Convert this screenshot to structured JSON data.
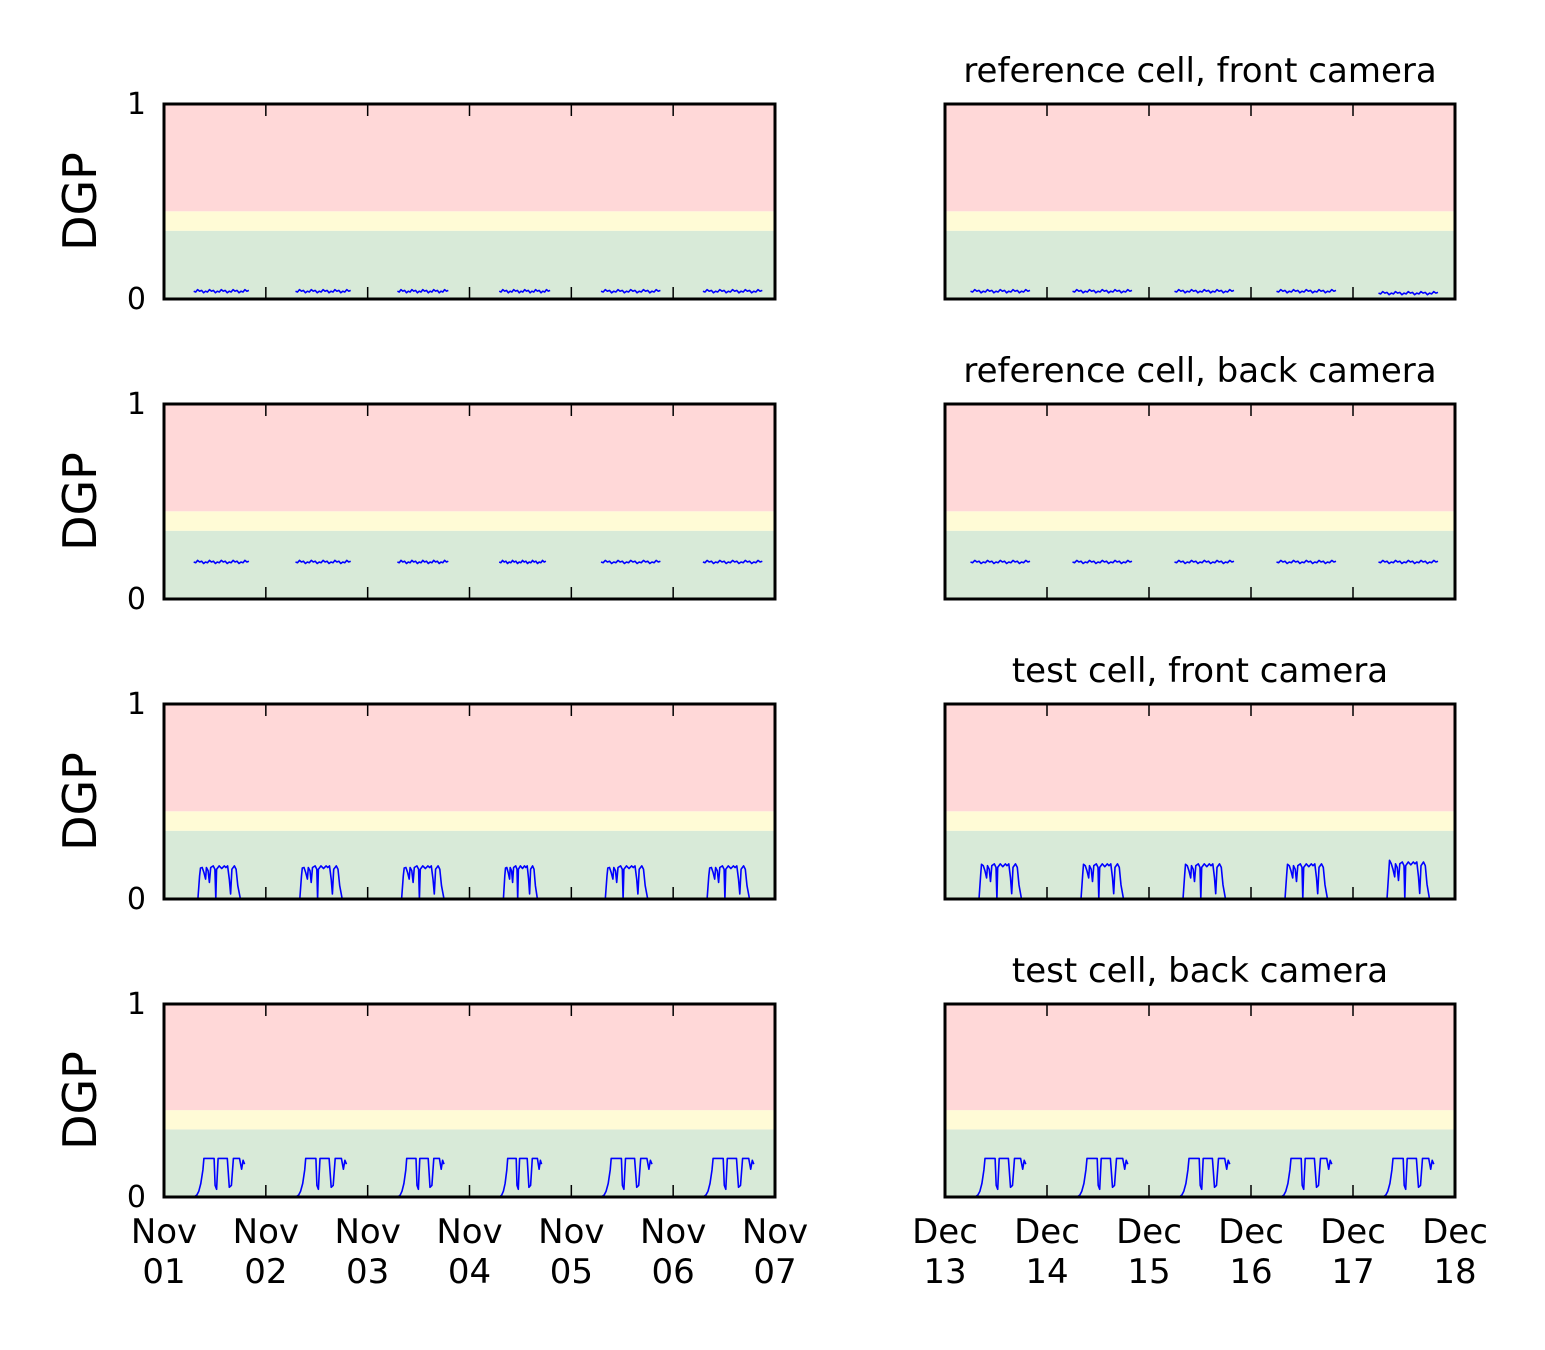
{
  "colors": {
    "discomfort": "#ffd8d8",
    "perceptible": "#fffbd6",
    "imperceptible": "#d8ead8",
    "line": "#0000ff",
    "axis": "#000000"
  },
  "chart_data": [
    {
      "type": "line",
      "panel": "left",
      "row": 1,
      "title": "",
      "ylabel": "DGP",
      "ylim": [
        0,
        1
      ],
      "yticks": [
        "0",
        "1"
      ],
      "xlim": [
        "2012-11-01",
        "2012-11-07"
      ],
      "xticklabels": [
        "Nov\n01",
        "Nov\n02",
        "Nov\n03",
        "Nov\n04",
        "Nov\n05",
        "Nov\n06",
        "Nov\n07"
      ],
      "zones": [
        {
          "from": 0,
          "to": 0.35,
          "color": "#d8ead8"
        },
        {
          "from": 0.35,
          "to": 0.45,
          "color": "#fffbd6"
        },
        {
          "from": 0.45,
          "to": 1,
          "color": "#ffd8d8"
        }
      ],
      "series": [
        {
          "pattern": "flat",
          "segments": [
            [
              "2012-11-01 07:00",
              "2012-11-01 20:00",
              0.04
            ],
            [
              "2012-11-02 07:00",
              "2012-11-02 20:00",
              0.04
            ],
            [
              "2012-11-03 07:00",
              "2012-11-03 19:00",
              0.04
            ],
            [
              "2012-11-04 07:00",
              "2012-11-04 19:00",
              0.04
            ],
            [
              "2012-11-05 07:00",
              "2012-11-05 21:00",
              0.04
            ],
            [
              "2012-11-06 07:00",
              "2012-11-06 21:00",
              0.04
            ]
          ]
        }
      ]
    },
    {
      "type": "line",
      "panel": "right",
      "row": 1,
      "title": "reference cell, front camera",
      "ylabel": "",
      "ylim": [
        0,
        1
      ],
      "yticks": [],
      "xlim": [
        "2012-12-13",
        "2012-12-18"
      ],
      "xticklabels": [
        "Dec\n13",
        "Dec\n14",
        "Dec\n15",
        "Dec\n16",
        "Dec\n17",
        "Dec\n18"
      ],
      "zones": [
        {
          "from": 0,
          "to": 0.35,
          "color": "#d8ead8"
        },
        {
          "from": 0.35,
          "to": 0.45,
          "color": "#fffbd6"
        },
        {
          "from": 0.45,
          "to": 1,
          "color": "#ffd8d8"
        }
      ],
      "series": [
        {
          "pattern": "flat",
          "segments": [
            [
              "2012-12-13 06:00",
              "2012-12-13 20:00",
              0.04
            ],
            [
              "2012-12-14 06:00",
              "2012-12-14 20:00",
              0.04
            ],
            [
              "2012-12-15 06:00",
              "2012-12-15 20:00",
              0.04
            ],
            [
              "2012-12-16 06:00",
              "2012-12-16 20:00",
              0.04
            ],
            [
              "2012-12-17 06:00",
              "2012-12-17 20:00",
              0.03
            ]
          ]
        }
      ]
    },
    {
      "type": "line",
      "panel": "left",
      "row": 2,
      "title": "",
      "ylabel": "DGP",
      "ylim": [
        0,
        1
      ],
      "yticks": [
        "0",
        "1"
      ],
      "xlim": [
        "2012-11-01",
        "2012-11-07"
      ],
      "xticklabels": [
        "Nov\n01",
        "Nov\n02",
        "Nov\n03",
        "Nov\n04",
        "Nov\n05",
        "Nov\n06",
        "Nov\n07"
      ],
      "zones": [
        {
          "from": 0,
          "to": 0.35,
          "color": "#d8ead8"
        },
        {
          "from": 0.35,
          "to": 0.45,
          "color": "#fffbd6"
        },
        {
          "from": 0.45,
          "to": 1,
          "color": "#ffd8d8"
        }
      ],
      "series": [
        {
          "pattern": "flat",
          "segments": [
            [
              "2012-11-01 07:00",
              "2012-11-01 20:00",
              0.19
            ],
            [
              "2012-11-02 07:00",
              "2012-11-02 20:00",
              0.19
            ],
            [
              "2012-11-03 07:00",
              "2012-11-03 19:00",
              0.19
            ],
            [
              "2012-11-04 07:00",
              "2012-11-04 18:00",
              0.19
            ],
            [
              "2012-11-05 07:00",
              "2012-11-05 21:00",
              0.19
            ],
            [
              "2012-11-06 07:00",
              "2012-11-06 21:00",
              0.19
            ]
          ]
        }
      ]
    },
    {
      "type": "line",
      "panel": "right",
      "row": 2,
      "title": "reference cell, back camera",
      "ylabel": "",
      "ylim": [
        0,
        1
      ],
      "yticks": [],
      "xlim": [
        "2012-12-13",
        "2012-12-18"
      ],
      "xticklabels": [
        "Dec\n13",
        "Dec\n14",
        "Dec\n15",
        "Dec\n16",
        "Dec\n17",
        "Dec\n18"
      ],
      "zones": [
        {
          "from": 0,
          "to": 0.35,
          "color": "#d8ead8"
        },
        {
          "from": 0.35,
          "to": 0.45,
          "color": "#fffbd6"
        },
        {
          "from": 0.45,
          "to": 1,
          "color": "#ffd8d8"
        }
      ],
      "series": [
        {
          "pattern": "flat",
          "segments": [
            [
              "2012-12-13 06:00",
              "2012-12-13 20:00",
              0.19
            ],
            [
              "2012-12-14 06:00",
              "2012-12-14 20:00",
              0.19
            ],
            [
              "2012-12-15 06:00",
              "2012-12-15 20:00",
              0.19
            ],
            [
              "2012-12-16 06:00",
              "2012-12-16 20:00",
              0.19
            ],
            [
              "2012-12-17 06:00",
              "2012-12-17 20:00",
              0.19
            ]
          ]
        }
      ]
    },
    {
      "type": "line",
      "panel": "left",
      "row": 3,
      "title": "",
      "ylabel": "DGP",
      "ylim": [
        0,
        1
      ],
      "yticks": [
        "0",
        "1"
      ],
      "xlim": [
        "2012-11-01",
        "2012-11-07"
      ],
      "xticklabels": [
        "Nov\n01",
        "Nov\n02",
        "Nov\n03",
        "Nov\n04",
        "Nov\n05",
        "Nov\n06",
        "Nov\n07"
      ],
      "zones": [
        {
          "from": 0,
          "to": 0.35,
          "color": "#d8ead8"
        },
        {
          "from": 0.35,
          "to": 0.45,
          "color": "#fffbd6"
        },
        {
          "from": 0.45,
          "to": 1,
          "color": "#ffd8d8"
        }
      ],
      "series": [
        {
          "pattern": "pulse",
          "segments": [
            [
              "2012-11-01 08:00",
              "2012-11-01 18:00",
              0.17
            ],
            [
              "2012-11-02 08:00",
              "2012-11-02 18:00",
              0.17
            ],
            [
              "2012-11-03 08:00",
              "2012-11-03 18:00",
              0.17
            ],
            [
              "2012-11-04 08:00",
              "2012-11-04 16:00",
              0.17
            ],
            [
              "2012-11-05 08:00",
              "2012-11-05 18:00",
              0.17
            ],
            [
              "2012-11-06 08:00",
              "2012-11-06 18:00",
              0.17
            ]
          ]
        }
      ]
    },
    {
      "type": "line",
      "panel": "right",
      "row": 3,
      "title": "test cell, front camera",
      "ylabel": "",
      "ylim": [
        0,
        1
      ],
      "yticks": [],
      "xlim": [
        "2012-12-13",
        "2012-12-18"
      ],
      "xticklabels": [
        "Dec\n13",
        "Dec\n14",
        "Dec\n15",
        "Dec\n16",
        "Dec\n17",
        "Dec\n18"
      ],
      "zones": [
        {
          "from": 0,
          "to": 0.35,
          "color": "#d8ead8"
        },
        {
          "from": 0.35,
          "to": 0.45,
          "color": "#fffbd6"
        },
        {
          "from": 0.45,
          "to": 1,
          "color": "#ffd8d8"
        }
      ],
      "series": [
        {
          "pattern": "pulse",
          "segments": [
            [
              "2012-12-13 08:00",
              "2012-12-13 18:00",
              0.18
            ],
            [
              "2012-12-14 08:00",
              "2012-12-14 18:00",
              0.18
            ],
            [
              "2012-12-15 08:00",
              "2012-12-15 18:00",
              0.18
            ],
            [
              "2012-12-16 08:00",
              "2012-12-16 18:00",
              0.18
            ],
            [
              "2012-12-17 08:00",
              "2012-12-17 18:00",
              0.19
            ]
          ]
        }
      ]
    },
    {
      "type": "line",
      "panel": "left",
      "row": 4,
      "title": "",
      "ylabel": "DGP",
      "ylim": [
        0,
        1
      ],
      "yticks": [
        "0",
        "1"
      ],
      "xlim": [
        "2012-11-01",
        "2012-11-07"
      ],
      "xticklabels": [
        "Nov\n01",
        "Nov\n02",
        "Nov\n03",
        "Nov\n04",
        "Nov\n05",
        "Nov\n06",
        "Nov\n07"
      ],
      "zones": [
        {
          "from": 0,
          "to": 0.35,
          "color": "#d8ead8"
        },
        {
          "from": 0.35,
          "to": 0.45,
          "color": "#fffbd6"
        },
        {
          "from": 0.45,
          "to": 1,
          "color": "#ffd8d8"
        }
      ],
      "series": [
        {
          "pattern": "square",
          "segments": [
            [
              "2012-11-01 07:00",
              "2012-11-01 19:00",
              0.2
            ],
            [
              "2012-11-02 07:00",
              "2012-11-02 19:00",
              0.2
            ],
            [
              "2012-11-03 07:00",
              "2012-11-03 18:00",
              0.2
            ],
            [
              "2012-11-04 07:00",
              "2012-11-04 17:00",
              0.2
            ],
            [
              "2012-11-05 07:00",
              "2012-11-05 19:00",
              0.2
            ],
            [
              "2012-11-06 07:00",
              "2012-11-06 19:00",
              0.2
            ]
          ]
        }
      ]
    },
    {
      "type": "line",
      "panel": "right",
      "row": 4,
      "title": "test cell, back camera",
      "ylabel": "",
      "ylim": [
        0,
        1
      ],
      "yticks": [],
      "xlim": [
        "2012-12-13",
        "2012-12-18"
      ],
      "xticklabels": [
        "Dec\n13",
        "Dec\n14",
        "Dec\n15",
        "Dec\n16",
        "Dec\n17",
        "Dec\n18"
      ],
      "zones": [
        {
          "from": 0,
          "to": 0.35,
          "color": "#d8ead8"
        },
        {
          "from": 0.35,
          "to": 0.45,
          "color": "#fffbd6"
        },
        {
          "from": 0.45,
          "to": 1,
          "color": "#ffd8d8"
        }
      ],
      "series": [
        {
          "pattern": "square",
          "segments": [
            [
              "2012-12-13 07:00",
              "2012-12-13 19:00",
              0.2
            ],
            [
              "2012-12-14 07:00",
              "2012-12-14 19:00",
              0.2
            ],
            [
              "2012-12-15 07:00",
              "2012-12-15 19:00",
              0.2
            ],
            [
              "2012-12-16 07:00",
              "2012-12-16 19:00",
              0.2
            ],
            [
              "2012-12-17 07:00",
              "2012-12-17 19:00",
              0.2
            ]
          ]
        }
      ]
    }
  ]
}
